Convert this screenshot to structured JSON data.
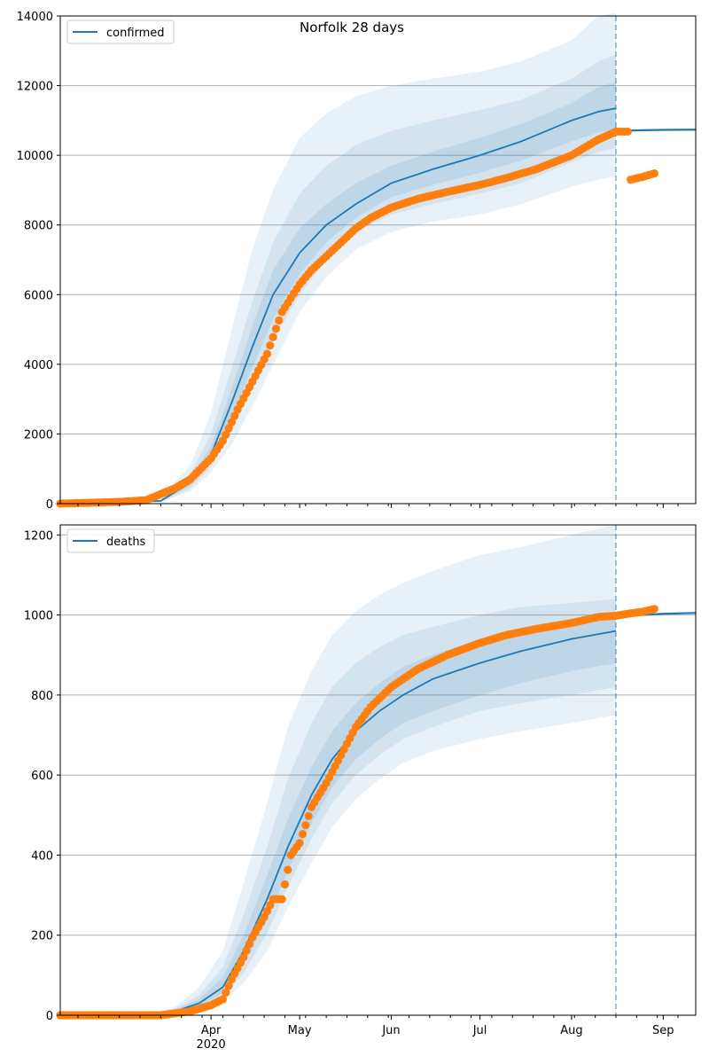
{
  "figure": {
    "title": "Norfolk 28 days"
  },
  "colors": {
    "model_line": "#1f77b4",
    "observed": "#ff7f0e",
    "band": "#1f77b4",
    "grid": "#b0b0b0",
    "forecast_marker": "#1f77b4"
  },
  "chart_data": [
    {
      "type": "line",
      "panel": "top",
      "legend": [
        "confirmed"
      ],
      "legend_position": "top-left",
      "grid": "horizontal",
      "xlim": [
        "2020-02-10",
        "2020-09-12"
      ],
      "ylim": [
        0,
        14000
      ],
      "yticks": [
        0,
        2000,
        4000,
        6000,
        8000,
        10000,
        12000,
        14000
      ],
      "ytick_labels": [
        "0",
        "2000",
        "4000",
        "6000",
        "8000",
        "10000",
        "12000",
        "14000"
      ],
      "forecast_start": "2020-08-16",
      "model": {
        "name": "confirmed",
        "x": [
          "2020-02-10",
          "2020-03-01",
          "2020-03-15",
          "2020-03-25",
          "2020-04-01",
          "2020-04-08",
          "2020-04-15",
          "2020-04-22",
          "2020-05-01",
          "2020-05-10",
          "2020-05-20",
          "2020-06-01",
          "2020-06-15",
          "2020-07-01",
          "2020-07-15",
          "2020-08-01",
          "2020-08-10",
          "2020-08-16"
        ],
        "y": [
          0,
          20,
          80,
          600,
          1400,
          2900,
          4500,
          6000,
          7200,
          8000,
          8600,
          9200,
          9600,
          10000,
          10400,
          11000,
          11250,
          11350
        ]
      },
      "projection": {
        "x": [
          "2020-08-16",
          "2020-08-25",
          "2020-09-01",
          "2020-09-12"
        ],
        "y": [
          10700,
          10720,
          10730,
          10735
        ]
      },
      "bands": {
        "x": [
          "2020-02-10",
          "2020-03-01",
          "2020-03-15",
          "2020-03-25",
          "2020-04-01",
          "2020-04-08",
          "2020-04-15",
          "2020-04-22",
          "2020-05-01",
          "2020-05-10",
          "2020-05-20",
          "2020-06-01",
          "2020-06-15",
          "2020-07-01",
          "2020-07-15",
          "2020-08-01",
          "2020-08-10",
          "2020-08-16"
        ],
        "outer_low": [
          0,
          10,
          40,
          350,
          900,
          1700,
          2800,
          4000,
          5500,
          6500,
          7300,
          7800,
          8100,
          8300,
          8600,
          9100,
          9300,
          9400
        ],
        "outer_high": [
          0,
          40,
          160,
          1100,
          2600,
          5000,
          7300,
          9000,
          10500,
          11200,
          11700,
          12000,
          12200,
          12400,
          12700,
          13300,
          14000,
          14100
        ],
        "mid_low": [
          0,
          13,
          50,
          430,
          1050,
          2100,
          3300,
          4700,
          6000,
          7000,
          7800,
          8300,
          8600,
          8900,
          9200,
          9800,
          10100,
          10200
        ],
        "mid_high": [
          0,
          30,
          120,
          850,
          2000,
          3900,
          5800,
          7500,
          8900,
          9700,
          10300,
          10700,
          11000,
          11300,
          11600,
          12200,
          12700,
          12900
        ],
        "inner_low": [
          0,
          16,
          65,
          520,
          1250,
          2500,
          3900,
          5300,
          6600,
          7500,
          8200,
          8800,
          9150,
          9500,
          9850,
          10400,
          10650,
          10750
        ],
        "inner_high": [
          0,
          25,
          100,
          700,
          1650,
          3300,
          5100,
          6700,
          7900,
          8600,
          9200,
          9700,
          10100,
          10500,
          10900,
          11500,
          11950,
          12100
        ]
      },
      "observed": {
        "x": [
          "2020-02-10",
          "2020-03-01",
          "2020-03-10",
          "2020-03-20",
          "2020-03-25",
          "2020-04-01",
          "2020-04-05",
          "2020-04-10",
          "2020-04-15",
          "2020-04-20",
          "2020-04-25",
          "2020-05-01",
          "2020-05-05",
          "2020-05-10",
          "2020-05-15",
          "2020-05-20",
          "2020-05-25",
          "2020-06-01",
          "2020-06-10",
          "2020-06-20",
          "2020-07-01",
          "2020-07-10",
          "2020-07-20",
          "2020-08-01",
          "2020-08-10",
          "2020-08-16",
          "2020-08-20",
          "2020-08-21",
          "2020-08-25",
          "2020-08-29"
        ],
        "y": [
          0,
          50,
          100,
          450,
          700,
          1300,
          1800,
          2700,
          3500,
          4300,
          5500,
          6300,
          6700,
          7100,
          7500,
          7900,
          8200,
          8500,
          8750,
          8950,
          9150,
          9350,
          9600,
          10000,
          10450,
          10680,
          10680,
          9300,
          9380,
          9480
        ]
      }
    },
    {
      "type": "line",
      "panel": "bottom",
      "legend": [
        "deaths"
      ],
      "legend_position": "top-left",
      "grid": "horizontal",
      "xlim": [
        "2020-02-10",
        "2020-09-12"
      ],
      "ylim": [
        0,
        1225
      ],
      "yticks": [
        0,
        200,
        400,
        600,
        800,
        1000,
        1200
      ],
      "ytick_labels": [
        "0",
        "200",
        "400",
        "600",
        "800",
        "1000",
        "1200"
      ],
      "xtick_labels": [
        "Apr\n2020",
        "May",
        "Jun",
        "Jul",
        "Aug",
        "Sep"
      ],
      "forecast_start": "2020-08-16",
      "model": {
        "name": "deaths",
        "x": [
          "2020-02-10",
          "2020-03-10",
          "2020-03-20",
          "2020-03-28",
          "2020-04-05",
          "2020-04-12",
          "2020-04-20",
          "2020-04-27",
          "2020-05-05",
          "2020-05-12",
          "2020-05-20",
          "2020-05-28",
          "2020-06-05",
          "2020-06-15",
          "2020-07-01",
          "2020-07-15",
          "2020-08-01",
          "2020-08-16"
        ],
        "y": [
          0,
          0,
          10,
          30,
          70,
          160,
          290,
          420,
          550,
          640,
          710,
          760,
          800,
          840,
          880,
          910,
          940,
          960
        ]
      },
      "projection": {
        "x": [
          "2020-08-16",
          "2020-08-25",
          "2020-09-01",
          "2020-09-12"
        ],
        "y": [
          998,
          1000,
          1003,
          1005
        ]
      },
      "bands": {
        "x": [
          "2020-02-10",
          "2020-03-10",
          "2020-03-20",
          "2020-03-28",
          "2020-04-05",
          "2020-04-12",
          "2020-04-20",
          "2020-04-27",
          "2020-05-05",
          "2020-05-12",
          "2020-05-20",
          "2020-05-28",
          "2020-06-05",
          "2020-06-15",
          "2020-07-01",
          "2020-07-15",
          "2020-08-01",
          "2020-08-16"
        ],
        "outer_low": [
          0,
          0,
          5,
          12,
          35,
          80,
          160,
          270,
          380,
          470,
          540,
          590,
          630,
          660,
          690,
          710,
          730,
          750
        ],
        "outer_high": [
          0,
          0,
          22,
          70,
          160,
          330,
          530,
          720,
          860,
          950,
          1010,
          1050,
          1080,
          1110,
          1150,
          1170,
          1200,
          1225
        ],
        "mid_low": [
          0,
          0,
          7,
          18,
          45,
          105,
          205,
          320,
          440,
          530,
          600,
          650,
          690,
          720,
          760,
          780,
          800,
          820
        ],
        "mid_high": [
          0,
          0,
          17,
          50,
          120,
          250,
          420,
          590,
          730,
          820,
          880,
          920,
          950,
          970,
          1000,
          1020,
          1030,
          1040
        ],
        "inner_low": [
          0,
          0,
          8,
          23,
          55,
          125,
          240,
          360,
          480,
          570,
          640,
          690,
          730,
          760,
          800,
          830,
          860,
          880
        ],
        "inner_high": [
          0,
          0,
          14,
          40,
          95,
          200,
          350,
          490,
          620,
          710,
          780,
          830,
          870,
          900,
          940,
          960,
          980,
          990
        ]
      },
      "observed": {
        "x": [
          "2020-02-10",
          "2020-03-15",
          "2020-03-25",
          "2020-04-01",
          "2020-04-05",
          "2020-04-08",
          "2020-04-12",
          "2020-04-15",
          "2020-04-19",
          "2020-04-22",
          "2020-04-25",
          "2020-04-28",
          "2020-05-01",
          "2020-05-05",
          "2020-05-10",
          "2020-05-15",
          "2020-05-20",
          "2020-05-25",
          "2020-06-01",
          "2020-06-10",
          "2020-06-20",
          "2020-07-01",
          "2020-07-10",
          "2020-07-20",
          "2020-08-01",
          "2020-08-10",
          "2020-08-16",
          "2020-08-20",
          "2020-08-25",
          "2020-08-29"
        ],
        "y": [
          0,
          0,
          10,
          25,
          40,
          90,
          145,
          195,
          245,
          290,
          290,
          400,
          430,
          520,
          580,
          650,
          720,
          770,
          820,
          865,
          900,
          930,
          950,
          965,
          980,
          995,
          998,
          1003,
          1008,
          1015
        ]
      }
    }
  ]
}
